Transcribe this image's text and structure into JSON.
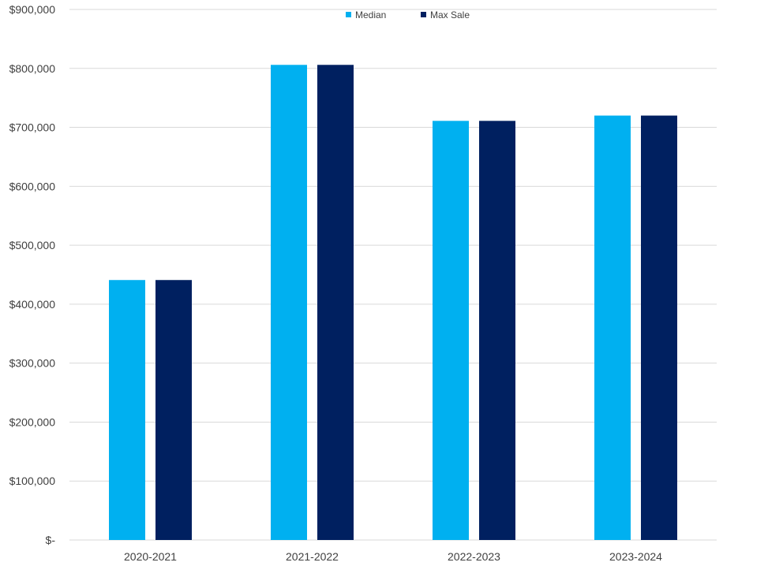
{
  "chart_data": {
    "type": "bar",
    "title": "",
    "xlabel": "",
    "ylabel": "",
    "categories": [
      "2020-2021",
      "2021-2022",
      "2022-2023",
      "2023-2024"
    ],
    "series": [
      {
        "name": "Median",
        "color": "#00B0F0",
        "values": [
          441000,
          806000,
          711000,
          720000
        ]
      },
      {
        "name": "Max Sale",
        "color": "#002060",
        "values": [
          441000,
          806000,
          711000,
          720000
        ]
      }
    ],
    "ylim": [
      0,
      900000
    ],
    "yticks": [
      0,
      100000,
      200000,
      300000,
      400000,
      500000,
      600000,
      700000,
      800000,
      900000
    ],
    "ytick_labels": [
      "$-",
      "$100,000",
      "$200,000",
      "$300,000",
      "$400,000",
      "$500,000",
      "$600,000",
      "$700,000",
      "$800,000",
      "$900,000"
    ],
    "grid": true,
    "gridline_color": "#D9D9D9",
    "legend_position": "top-center"
  }
}
